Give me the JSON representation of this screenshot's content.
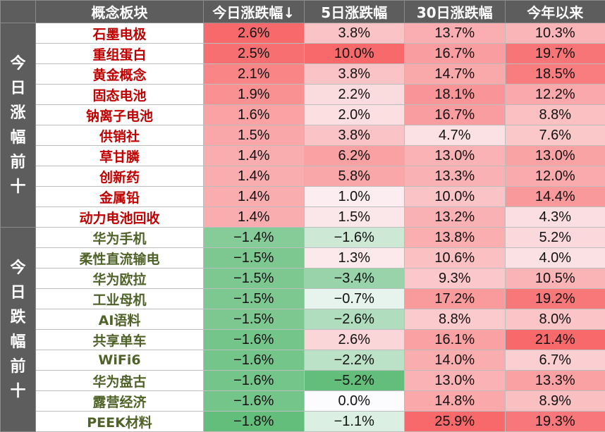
{
  "header": {
    "col_name": "概念板块",
    "col_today": "今日涨跌幅↓",
    "col_5d": "5日涨跌幅",
    "col_30d": "30日涨跌幅",
    "col_ytd": "今年以来"
  },
  "groups": [
    {
      "label": "今日涨幅前十",
      "kind": "up",
      "rows": [
        {
          "name": "石墨电极",
          "today": "2.6%",
          "d5": "3.8%",
          "d30": "13.7%",
          "ytd": "10.3%"
        },
        {
          "name": "重组蛋白",
          "today": "2.5%",
          "d5": "10.0%",
          "d30": "16.7%",
          "ytd": "19.7%"
        },
        {
          "name": "黄金概念",
          "today": "2.1%",
          "d5": "3.8%",
          "d30": "14.7%",
          "ytd": "18.5%"
        },
        {
          "name": "固态电池",
          "today": "1.9%",
          "d5": "2.2%",
          "d30": "18.1%",
          "ytd": "12.2%"
        },
        {
          "name": "钠离子电池",
          "today": "1.6%",
          "d5": "2.0%",
          "d30": "16.7%",
          "ytd": "8.8%"
        },
        {
          "name": "供销社",
          "today": "1.5%",
          "d5": "3.8%",
          "d30": "4.7%",
          "ytd": "7.6%"
        },
        {
          "name": "草甘膦",
          "today": "1.4%",
          "d5": "6.2%",
          "d30": "13.0%",
          "ytd": "13.0%"
        },
        {
          "name": "创新药",
          "today": "1.4%",
          "d5": "5.8%",
          "d30": "13.3%",
          "ytd": "12.0%"
        },
        {
          "name": "金属铅",
          "today": "1.4%",
          "d5": "1.0%",
          "d30": "10.0%",
          "ytd": "14.4%"
        },
        {
          "name": "动力电池回收",
          "today": "1.4%",
          "d5": "1.5%",
          "d30": "13.2%",
          "ytd": "4.3%"
        }
      ]
    },
    {
      "label": "今日跌幅前十",
      "kind": "down",
      "rows": [
        {
          "name": "华为手机",
          "today": "−1.4%",
          "d5": "−1.6%",
          "d30": "13.8%",
          "ytd": "5.2%"
        },
        {
          "name": "柔性直流输电",
          "today": "−1.5%",
          "d5": "1.3%",
          "d30": "10.6%",
          "ytd": "4.0%"
        },
        {
          "name": "华为欧拉",
          "today": "−1.5%",
          "d5": "−3.4%",
          "d30": "9.3%",
          "ytd": "10.5%"
        },
        {
          "name": "工业母机",
          "today": "−1.5%",
          "d5": "−0.7%",
          "d30": "17.2%",
          "ytd": "19.2%"
        },
        {
          "name": "AI语料",
          "today": "−1.5%",
          "d5": "−2.6%",
          "d30": "8.8%",
          "ytd": "8.0%"
        },
        {
          "name": "共享单车",
          "today": "−1.6%",
          "d5": "2.6%",
          "d30": "16.1%",
          "ytd": "21.4%"
        },
        {
          "name": "WiFi6",
          "today": "−1.6%",
          "d5": "−2.2%",
          "d30": "14.0%",
          "ytd": "6.7%"
        },
        {
          "name": "华为盘古",
          "today": "−1.6%",
          "d5": "−5.2%",
          "d30": "13.0%",
          "ytd": "13.3%"
        },
        {
          "name": "露营经济",
          "today": "−1.6%",
          "d5": "0.0%",
          "d30": "14.8%",
          "ytd": "8.9%"
        },
        {
          "name": "PEEK材料",
          "today": "−1.8%",
          "d5": "−1.1%",
          "d30": "25.9%",
          "ytd": "19.3%"
        }
      ]
    }
  ],
  "colors": {
    "header_bg": "#5d5d5d",
    "up_text": "#c00000",
    "down_text": "#4f6228",
    "positive_max": "#f8696b",
    "negative_max": "#63be7b"
  }
}
